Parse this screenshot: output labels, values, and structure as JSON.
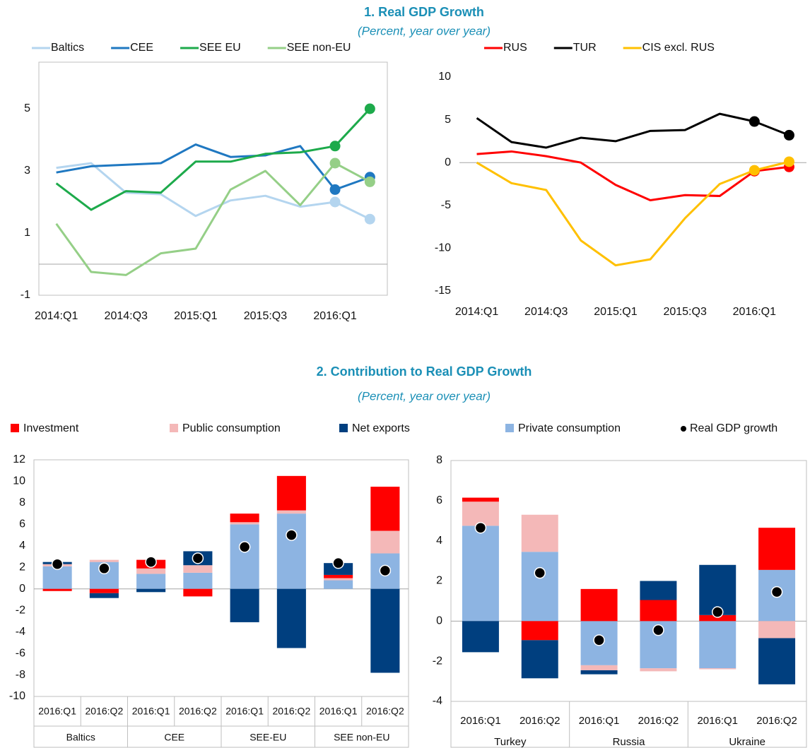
{
  "chart_data": [
    {
      "type": "line",
      "title": "1. Real GDP Growth",
      "subtitle": "(Percent, year over year)",
      "categories": [
        "2014:Q1",
        null,
        "2014:Q3",
        null,
        "2015:Q1",
        null,
        "2015:Q3",
        null,
        "2016:Q1",
        null
      ],
      "series": [
        {
          "name": "Baltics",
          "color": "#b4d5ef",
          "values": [
            3.1,
            3.25,
            2.3,
            2.25,
            1.55,
            2.05,
            2.2,
            1.85,
            2.0,
            1.45
          ]
        },
        {
          "name": "CEE",
          "color": "#1f78c1",
          "values": [
            2.95,
            3.15,
            3.2,
            3.25,
            3.85,
            3.45,
            3.5,
            3.8,
            2.4,
            2.8
          ]
        },
        {
          "name": "SEE EU",
          "color": "#1daa4b",
          "values": [
            2.6,
            1.75,
            2.35,
            2.3,
            3.3,
            3.3,
            3.55,
            3.6,
            3.8,
            5.0
          ]
        },
        {
          "name": "SEE non-EU",
          "color": "#95cf87",
          "values": [
            1.3,
            -0.25,
            -0.35,
            0.35,
            0.5,
            2.4,
            3.0,
            1.9,
            3.25,
            2.65
          ]
        }
      ],
      "ylim": [
        -1,
        6.5
      ],
      "yticks": [
        -1,
        1,
        3,
        5
      ],
      "zero_line": true
    },
    {
      "type": "line",
      "categories": [
        "2014:Q1",
        null,
        "2014:Q3",
        null,
        "2015:Q1",
        null,
        "2015:Q3",
        null,
        "2016:Q1",
        null
      ],
      "series": [
        {
          "name": "RUS",
          "color": "#ff0000",
          "values": [
            1.0,
            1.3,
            0.75,
            0,
            -2.6,
            -4.4,
            -3.8,
            -3.9,
            -1.0,
            -0.5
          ]
        },
        {
          "name": "TUR",
          "color": "#000000",
          "values": [
            5.2,
            2.4,
            1.75,
            2.9,
            2.5,
            3.7,
            3.8,
            5.7,
            4.8,
            3.2
          ]
        },
        {
          "name": "CIS excl. RUS",
          "color": "#ffc000",
          "values": [
            0,
            -2.4,
            -3.2,
            -9.1,
            -12.0,
            -11.3,
            -6.5,
            -2.5,
            -0.9,
            0.1
          ]
        }
      ],
      "ylim": [
        -15,
        10
      ],
      "yticks": [
        -15,
        -10,
        -5,
        0,
        5,
        10
      ],
      "zero_line": true
    },
    {
      "type": "stacked-bar",
      "title": "2. Contribution to Real GDP Growth",
      "subtitle": "(Percent, year over year)",
      "categories": [
        "2016:Q1",
        "2016:Q2",
        "2016:Q1",
        "2016:Q2",
        "2016:Q1",
        "2016:Q2",
        "2016:Q1",
        "2016:Q2"
      ],
      "groups": [
        "Baltics",
        "CEE",
        "SEE-EU",
        "SEE non-EU"
      ],
      "series": [
        {
          "name": "Investment",
          "color": "#ff0000",
          "values": [
            -0.2,
            -0.4,
            0.8,
            -0.7,
            0.8,
            3.2,
            0.3,
            4.1
          ]
        },
        {
          "name": "Public consumption",
          "color": "#f4b8b8",
          "values": [
            0.2,
            0.2,
            0.5,
            0.7,
            0.2,
            0.3,
            0.2,
            2.1
          ]
        },
        {
          "name": "Net exports",
          "color": "#003f7f",
          "values": [
            0.2,
            -0.45,
            -0.3,
            1.3,
            -3.1,
            -5.5,
            1.1,
            -7.8
          ]
        },
        {
          "name": "Private consumption",
          "color": "#8db4e2",
          "values": [
            2.1,
            2.5,
            1.4,
            1.5,
            6.0,
            7.0,
            0.8,
            3.3
          ]
        }
      ],
      "points": {
        "name": "Real GDP growth",
        "color": "#000000",
        "values": [
          2.3,
          1.9,
          2.5,
          2.85,
          3.9,
          5.0,
          2.4,
          1.7
        ]
      },
      "ylim": [
        -10,
        12
      ],
      "yticks": [
        -10,
        -8,
        -6,
        -4,
        -2,
        0,
        2,
        4,
        6,
        8,
        10,
        12
      ],
      "zero_line": true
    },
    {
      "type": "stacked-bar",
      "categories": [
        "2016:Q1",
        "2016:Q2",
        "2016:Q1",
        "2016:Q2",
        "2016:Q1",
        "2016:Q2"
      ],
      "groups": [
        "Turkey",
        "Russia",
        "Ukraine"
      ],
      "series": [
        {
          "color": "#ff0000",
          "values": [
            0.2,
            -0.95,
            1.6,
            1.05,
            0.3,
            2.1
          ]
        },
        {
          "color": "#f4b8b8",
          "values": [
            1.2,
            1.85,
            -0.25,
            -0.15,
            -0.05,
            -0.85
          ]
        },
        {
          "color": "#003f7f",
          "values": [
            -1.55,
            -1.9,
            -0.2,
            0.95,
            2.5,
            -2.3
          ]
        },
        {
          "color": "#8db4e2",
          "values": [
            4.75,
            3.45,
            -2.2,
            -2.35,
            -2.35,
            2.55
          ]
        }
      ],
      "points": {
        "color": "#000000",
        "values": [
          4.65,
          2.4,
          -0.95,
          -0.45,
          0.45,
          1.45
        ]
      },
      "ylim": [
        -4,
        8
      ],
      "yticks": [
        -4,
        -2,
        0,
        2,
        4,
        6,
        8
      ],
      "zero_line": true
    }
  ]
}
